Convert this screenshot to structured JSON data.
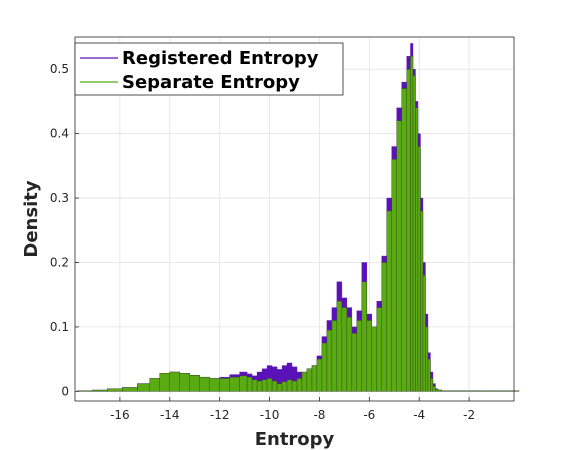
{
  "chart_data": {
    "type": "bar",
    "title": "",
    "xlabel": "Entropy",
    "ylabel": "Density",
    "xlim": [
      -17.8,
      -0.2
    ],
    "ylim": [
      -0.015,
      0.55
    ],
    "xticks": [
      -16,
      -14,
      -12,
      -10,
      -8,
      -6,
      -4,
      -2
    ],
    "xtick_labels": [
      "-16",
      "-14",
      "-12",
      "-10",
      "-8",
      "-6",
      "-4",
      "-2"
    ],
    "yticks": [
      0,
      0.1,
      0.2,
      0.3,
      0.4,
      0.5
    ],
    "ytick_labels": [
      "0",
      "0.1",
      "0.2",
      "0.3",
      "0.4",
      "0.5"
    ],
    "grid": true,
    "legend_position": "top-left",
    "colors": {
      "registered": "#5a12b8",
      "separate": "#5aaa14",
      "bar_edge": "#2e4a10",
      "grid": "#e2e2e2",
      "axis": "#262626"
    },
    "series": [
      {
        "name": "Registered Entropy",
        "x": [
          -17.4,
          -16.8,
          -16.2,
          -15.6,
          -15.0,
          -14.6,
          -14.2,
          -13.8,
          -13.4,
          -13.0,
          -12.6,
          -12.2,
          -11.8,
          -11.4,
          -11.0,
          -10.8,
          -10.6,
          -10.4,
          -10.2,
          -10.0,
          -9.8,
          -9.6,
          -9.4,
          -9.2,
          -9.0,
          -8.8,
          -8.6,
          -8.4,
          -8.2,
          -8.0,
          -7.8,
          -7.6,
          -7.4,
          -7.2,
          -7.0,
          -6.8,
          -6.6,
          -6.4,
          -6.2,
          -6.0,
          -5.8,
          -5.6,
          -5.4,
          -5.2,
          -5.0,
          -4.8,
          -4.6,
          -4.4,
          -4.3,
          -4.2,
          -4.1,
          -4.0,
          -3.9,
          -3.8,
          -3.7,
          -3.6,
          -3.5,
          -3.4,
          -3.3,
          -3.2,
          -3.0,
          -2.5,
          -2.0,
          -1.5,
          -0.5
        ],
        "values": [
          0.001,
          0.002,
          0.004,
          0.006,
          0.012,
          0.02,
          0.028,
          0.03,
          0.028,
          0.025,
          0.022,
          0.02,
          0.022,
          0.026,
          0.03,
          0.027,
          0.024,
          0.03,
          0.035,
          0.04,
          0.038,
          0.034,
          0.04,
          0.044,
          0.038,
          0.03,
          0.028,
          0.035,
          0.04,
          0.055,
          0.085,
          0.11,
          0.13,
          0.17,
          0.145,
          0.13,
          0.1,
          0.125,
          0.2,
          0.12,
          0.1,
          0.14,
          0.21,
          0.3,
          0.38,
          0.44,
          0.48,
          0.52,
          0.54,
          0.5,
          0.45,
          0.4,
          0.3,
          0.2,
          0.12,
          0.06,
          0.03,
          0.012,
          0.004,
          0.002,
          0.001,
          0.001,
          0.001,
          0.001,
          0.001
        ]
      },
      {
        "name": "Separate Entropy",
        "x": [
          -17.4,
          -16.8,
          -16.2,
          -15.6,
          -15.0,
          -14.6,
          -14.2,
          -13.8,
          -13.4,
          -13.0,
          -12.6,
          -12.2,
          -11.8,
          -11.4,
          -11.0,
          -10.8,
          -10.6,
          -10.4,
          -10.2,
          -10.0,
          -9.8,
          -9.6,
          -9.4,
          -9.2,
          -9.0,
          -8.8,
          -8.6,
          -8.4,
          -8.2,
          -8.0,
          -7.8,
          -7.6,
          -7.4,
          -7.2,
          -7.0,
          -6.8,
          -6.6,
          -6.4,
          -6.2,
          -6.0,
          -5.8,
          -5.6,
          -5.4,
          -5.2,
          -5.0,
          -4.8,
          -4.6,
          -4.4,
          -4.3,
          -4.2,
          -4.1,
          -4.0,
          -3.9,
          -3.8,
          -3.7,
          -3.6,
          -3.5,
          -3.4,
          -3.3,
          -3.2,
          -3.0,
          -2.5,
          -2.0,
          -1.5,
          -0.5
        ],
        "values": [
          0.001,
          0.002,
          0.004,
          0.006,
          0.012,
          0.02,
          0.028,
          0.03,
          0.028,
          0.025,
          0.022,
          0.02,
          0.02,
          0.022,
          0.024,
          0.022,
          0.018,
          0.016,
          0.018,
          0.02,
          0.016,
          0.012,
          0.015,
          0.018,
          0.016,
          0.02,
          0.03,
          0.035,
          0.04,
          0.05,
          0.075,
          0.095,
          0.11,
          0.14,
          0.13,
          0.115,
          0.09,
          0.11,
          0.17,
          0.11,
          0.1,
          0.13,
          0.2,
          0.28,
          0.36,
          0.42,
          0.47,
          0.5,
          0.52,
          0.49,
          0.44,
          0.38,
          0.28,
          0.18,
          0.1,
          0.05,
          0.02,
          0.008,
          0.003,
          0.002,
          0.001,
          0.001,
          0.001,
          0.001,
          0.001
        ]
      }
    ]
  }
}
